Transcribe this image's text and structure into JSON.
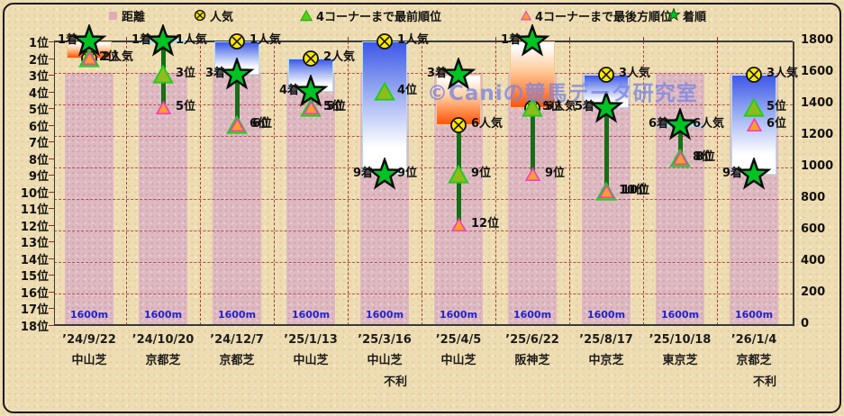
{
  "legend": {
    "items": [
      {
        "label": "距離",
        "marker": "pink-square"
      },
      {
        "label": "人気",
        "marker": "yellow-circle-x"
      },
      {
        "label": "4コーナーまで最前順位",
        "marker": "green-triangle"
      },
      {
        "label": "4コーナーまで最後方順位",
        "marker": "pink-triangle"
      },
      {
        "label": "着順",
        "marker": "green-star"
      }
    ]
  },
  "watermark": {
    "text": "©Caniの競馬データ研究室"
  },
  "left_axis": {
    "labels": [
      "1位",
      "2位",
      "3位",
      "4位",
      "5位",
      "6位",
      "7位",
      "8位",
      "9位",
      "10位",
      "11位",
      "12位",
      "13位",
      "14位",
      "15位",
      "16位",
      "17位",
      "18位"
    ]
  },
  "right_axis": {
    "labels": [
      "1800",
      "1600",
      "1400",
      "1200",
      "1000",
      "800",
      "600",
      "400",
      "200",
      "0"
    ]
  },
  "colors": {
    "distance_bar": "#dfb9c2",
    "loss_bar_top": "#3e57e8",
    "gain_bar_bottom": "#ff5a10",
    "popularity_fill": "#ffe800",
    "front_fill": "#8fbc1c",
    "front_stroke": "#22cc22",
    "rear_fill": "#ff9d2e",
    "rear_stroke": "#f23cc0",
    "star_fill": "#00c424",
    "distance_label": "#2222cc",
    "grid": "#b05252",
    "watermark": "#7c86e0"
  },
  "chart_data": {
    "type": "combo-bar-scatter",
    "rank_axis": {
      "min": 1,
      "max": 18,
      "unit": "位",
      "inverted": true
    },
    "distance_axis": {
      "min": 0,
      "max": 1800,
      "step": 200
    },
    "series": [
      {
        "name": "距離",
        "unit": "m",
        "values": [
          1600,
          1600,
          1600,
          1600,
          1600,
          1600,
          1600,
          1600,
          1600,
          1600
        ]
      },
      {
        "name": "人気",
        "values": [
          2,
          1,
          1,
          2,
          1,
          6,
          5,
          3,
          6,
          3
        ]
      },
      {
        "name": "4コーナーまで最前順位",
        "values": [
          2,
          3,
          6,
          5,
          4,
          9,
          5,
          10,
          8,
          5
        ]
      },
      {
        "name": "4コーナーまで最後方順位",
        "values": [
          2,
          5,
          6,
          5,
          9,
          12,
          9,
          10,
          8,
          6
        ]
      },
      {
        "name": "着順",
        "values": [
          1,
          1,
          3,
          4,
          9,
          3,
          1,
          5,
          6,
          9
        ]
      }
    ],
    "columns": [
      {
        "date": "’24/9/22",
        "track": "中山芝",
        "note": "",
        "distance": 1600,
        "distance_label": "1600m",
        "popularity": 2,
        "front": 2,
        "rear": 2,
        "finish": 1,
        "bar": {
          "type": "gain",
          "from": 1,
          "to": 2
        },
        "markers": [
          {
            "type": "circle",
            "rank": 2
          },
          {
            "type": "front",
            "rank": 2
          },
          {
            "type": "rear",
            "rank": 2
          },
          {
            "type": "star",
            "rank": 1
          }
        ],
        "labels": [
          {
            "text": "1着",
            "side": "left",
            "rank": 1
          },
          {
            "text": "2人気",
            "side": "right",
            "rank": 2
          },
          {
            "text": "2位",
            "side": "right",
            "rank": 2,
            "dx": -3
          }
        ]
      },
      {
        "date": "’24/10/20",
        "track": "京都芝",
        "note": "",
        "distance": 1600,
        "distance_label": "1600m",
        "popularity": 1,
        "front": 3,
        "rear": 5,
        "finish": 1,
        "bar": {
          "type": "even",
          "at": 1
        },
        "markers": [
          {
            "type": "circle",
            "rank": 1
          },
          {
            "type": "front",
            "rank": 3
          },
          {
            "type": "rear",
            "rank": 5
          },
          {
            "type": "star",
            "rank": 1
          }
        ],
        "labels": [
          {
            "text": "1着",
            "side": "left",
            "rank": 1
          },
          {
            "text": "1人気",
            "side": "right",
            "rank": 1
          },
          {
            "text": "3位",
            "side": "right",
            "rank": 3
          },
          {
            "text": "5位",
            "side": "right",
            "rank": 5
          }
        ]
      },
      {
        "date": "’24/12/7",
        "track": "京都芝",
        "note": "",
        "distance": 1600,
        "distance_label": "1600m",
        "popularity": 1,
        "front": 6,
        "rear": 6,
        "finish": 3,
        "bar": {
          "type": "loss",
          "from": 1,
          "to": 3
        },
        "markers": [
          {
            "type": "circle",
            "rank": 1
          },
          {
            "type": "front",
            "rank": 6
          },
          {
            "type": "rear",
            "rank": 6
          },
          {
            "type": "star",
            "rank": 3
          }
        ],
        "labels": [
          {
            "text": "1人気",
            "side": "right",
            "rank": 1
          },
          {
            "text": "3着",
            "side": "left",
            "rank": 3
          },
          {
            "text": "6位",
            "side": "right",
            "rank": 6
          },
          {
            "text": "6位",
            "side": "right",
            "rank": 6,
            "dx": 3
          }
        ]
      },
      {
        "date": "’25/1/13",
        "track": "中山芝",
        "note": "",
        "distance": 1600,
        "distance_label": "1600m",
        "popularity": 2,
        "front": 5,
        "rear": 5,
        "finish": 4,
        "bar": {
          "type": "loss",
          "from": 2,
          "to": 4
        },
        "markers": [
          {
            "type": "circle",
            "rank": 2
          },
          {
            "type": "front",
            "rank": 5
          },
          {
            "type": "rear",
            "rank": 5
          },
          {
            "type": "star",
            "rank": 4
          }
        ],
        "labels": [
          {
            "text": "2人気",
            "side": "right",
            "rank": 2
          },
          {
            "text": "4着",
            "side": "left",
            "rank": 4
          },
          {
            "text": "5位",
            "side": "right",
            "rank": 5
          },
          {
            "text": "5位",
            "side": "right",
            "rank": 5,
            "dx": 3
          }
        ]
      },
      {
        "date": "’25/3/16",
        "track": "中山芝",
        "note": "不利",
        "distance": 1600,
        "distance_label": "1600m",
        "popularity": 1,
        "front": 4,
        "rear": 9,
        "finish": 9,
        "bar": {
          "type": "loss",
          "from": 1,
          "to": 9
        },
        "markers": [
          {
            "type": "circle",
            "rank": 1
          },
          {
            "type": "front",
            "rank": 4
          },
          {
            "type": "rear",
            "rank": 9
          },
          {
            "type": "star",
            "rank": 9
          }
        ],
        "labels": [
          {
            "text": "1人気",
            "side": "right",
            "rank": 1
          },
          {
            "text": "4位",
            "side": "right",
            "rank": 4
          },
          {
            "text": "9着",
            "side": "left",
            "rank": 9
          },
          {
            "text": "9位",
            "side": "right",
            "rank": 9
          }
        ]
      },
      {
        "date": "’25/4/5",
        "track": "中山芝",
        "note": "",
        "distance": 1600,
        "distance_label": "1600m",
        "popularity": 6,
        "front": 9,
        "rear": 12,
        "finish": 3,
        "bar": {
          "type": "gain",
          "from": 3,
          "to": 6
        },
        "markers": [
          {
            "type": "circle",
            "rank": 6
          },
          {
            "type": "front",
            "rank": 9
          },
          {
            "type": "rear",
            "rank": 12
          },
          {
            "type": "star",
            "rank": 3
          }
        ],
        "labels": [
          {
            "text": "3着",
            "side": "left",
            "rank": 3
          },
          {
            "text": "6人気",
            "side": "right",
            "rank": 6
          },
          {
            "text": "9位",
            "side": "right",
            "rank": 9
          },
          {
            "text": "12位",
            "side": "right",
            "rank": 12
          }
        ]
      },
      {
        "date": "’25/6/22",
        "track": "阪神芝",
        "note": "",
        "distance": 1600,
        "distance_label": "1600m",
        "popularity": 5,
        "front": 5,
        "rear": 9,
        "finish": 1,
        "bar": {
          "type": "gain",
          "from": 1,
          "to": 5
        },
        "markers": [
          {
            "type": "circle",
            "rank": 5
          },
          {
            "type": "front",
            "rank": 5
          },
          {
            "type": "rear",
            "rank": 9
          },
          {
            "type": "star",
            "rank": 1
          }
        ],
        "labels": [
          {
            "text": "1着",
            "side": "left",
            "rank": 1
          },
          {
            "text": "5人気",
            "side": "right",
            "rank": 5
          },
          {
            "text": "5位",
            "side": "right",
            "rank": 5,
            "dx": -3
          },
          {
            "text": "9位",
            "side": "right",
            "rank": 9
          }
        ]
      },
      {
        "date": "’25/8/17",
        "track": "中京芝",
        "note": "",
        "distance": 1600,
        "distance_label": "1600m",
        "popularity": 3,
        "front": 10,
        "rear": 10,
        "finish": 5,
        "bar": {
          "type": "loss",
          "from": 3,
          "to": 5
        },
        "markers": [
          {
            "type": "circle",
            "rank": 3
          },
          {
            "type": "front",
            "rank": 10
          },
          {
            "type": "rear",
            "rank": 10
          },
          {
            "type": "star",
            "rank": 5
          }
        ],
        "labels": [
          {
            "text": "3人気",
            "side": "right",
            "rank": 3
          },
          {
            "text": "5着",
            "side": "left",
            "rank": 5
          },
          {
            "text": "10位",
            "side": "right",
            "rank": 10
          },
          {
            "text": "10位",
            "side": "right",
            "rank": 10,
            "dx": 3
          }
        ]
      },
      {
        "date": "’25/10/18",
        "track": "東京芝",
        "note": "",
        "distance": 1600,
        "distance_label": "1600m",
        "popularity": 6,
        "front": 8,
        "rear": 8,
        "finish": 6,
        "bar": {
          "type": "even",
          "at": 6
        },
        "markers": [
          {
            "type": "circle",
            "rank": 6
          },
          {
            "type": "front",
            "rank": 8
          },
          {
            "type": "rear",
            "rank": 8
          },
          {
            "type": "star",
            "rank": 6
          }
        ],
        "labels": [
          {
            "text": "6着",
            "side": "left",
            "rank": 6
          },
          {
            "text": "6人気",
            "side": "right",
            "rank": 6
          },
          {
            "text": "8位",
            "side": "right",
            "rank": 8
          },
          {
            "text": "8位",
            "side": "right",
            "rank": 8,
            "dx": 3
          }
        ]
      },
      {
        "date": "’26/1/4",
        "track": "京都芝",
        "note": "不利",
        "distance": 1600,
        "distance_label": "1600m",
        "popularity": 3,
        "front": 5,
        "rear": 6,
        "finish": 9,
        "bar": {
          "type": "loss",
          "from": 3,
          "to": 9
        },
        "markers": [
          {
            "type": "circle",
            "rank": 3
          },
          {
            "type": "front",
            "rank": 5
          },
          {
            "type": "rear",
            "rank": 6
          },
          {
            "type": "star",
            "rank": 9
          }
        ],
        "labels": [
          {
            "text": "3人気",
            "side": "right",
            "rank": 3
          },
          {
            "text": "5位",
            "side": "right",
            "rank": 5
          },
          {
            "text": "6位",
            "side": "right",
            "rank": 6
          },
          {
            "text": "9着",
            "side": "left",
            "rank": 9
          }
        ]
      }
    ]
  }
}
